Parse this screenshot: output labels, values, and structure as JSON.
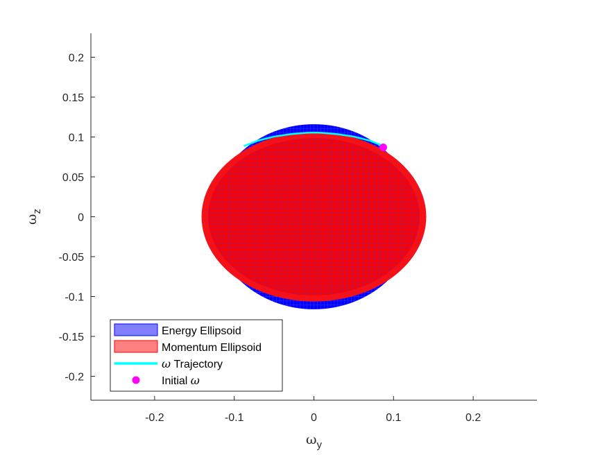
{
  "chart_data": {
    "type": "surface-projection",
    "view": "y-z plane",
    "xlabel": {
      "symbol": "ω",
      "subscript": "y"
    },
    "ylabel": {
      "symbol": "ω",
      "subscript": "z"
    },
    "xlim": [
      -0.28,
      0.28
    ],
    "ylim": [
      -0.23,
      0.23
    ],
    "xticks": [
      -0.2,
      -0.1,
      0,
      0.1,
      0.2
    ],
    "xtick_labels": [
      "-0.2",
      "-0.1",
      "0",
      "0.1",
      "0.2"
    ],
    "yticks": [
      0.2,
      0.15,
      0.1,
      0.05,
      0,
      -0.05,
      -0.1,
      -0.15,
      -0.2
    ],
    "ytick_labels": [
      "0.2",
      "0.15",
      "0.1",
      "0.05",
      "0",
      "-0.05",
      "-0.1",
      "-0.15",
      "-0.2"
    ],
    "grid": false,
    "legend_position": "bottom-left",
    "series": [
      {
        "name": "Energy Ellipsoid",
        "kind": "ellipsoid",
        "center": [
          0,
          0
        ],
        "semi_axes": [
          0.128,
          0.116
        ],
        "color": "#0000ff",
        "legend_color": "#8080ff"
      },
      {
        "name": "Momentum Ellipsoid",
        "kind": "ellipsoid",
        "center": [
          0,
          0
        ],
        "semi_axes": [
          0.141,
          0.106
        ],
        "color": "#ff0000",
        "legend_color": "#ff8080"
      },
      {
        "name": "Trajectory",
        "kind": "line",
        "color": "#00ffff",
        "points": [
          [
            -0.088,
            0.0885
          ],
          [
            -0.07,
            0.0955
          ],
          [
            -0.05,
            0.1005
          ],
          [
            -0.03,
            0.1035
          ],
          [
            -0.01,
            0.1052
          ],
          [
            0.0,
            0.1055
          ],
          [
            0.01,
            0.1052
          ],
          [
            0.03,
            0.1035
          ],
          [
            0.05,
            0.1005
          ],
          [
            0.07,
            0.0955
          ],
          [
            0.088,
            0.0885
          ]
        ]
      },
      {
        "name": "Initial",
        "kind": "marker",
        "color": "#ff00ff",
        "points": [
          [
            0.087,
            0.087
          ]
        ]
      }
    ]
  },
  "legend": {
    "items": [
      {
        "prefix": "",
        "text": "Energy Ellipsoid",
        "suffix": ""
      },
      {
        "prefix": "",
        "text": "Momentum Ellipsoid",
        "suffix": ""
      },
      {
        "prefix": "ω",
        "text": " Trajectory",
        "suffix": ""
      },
      {
        "prefix": "",
        "text": "Initial ",
        "suffix": "ω"
      }
    ]
  }
}
